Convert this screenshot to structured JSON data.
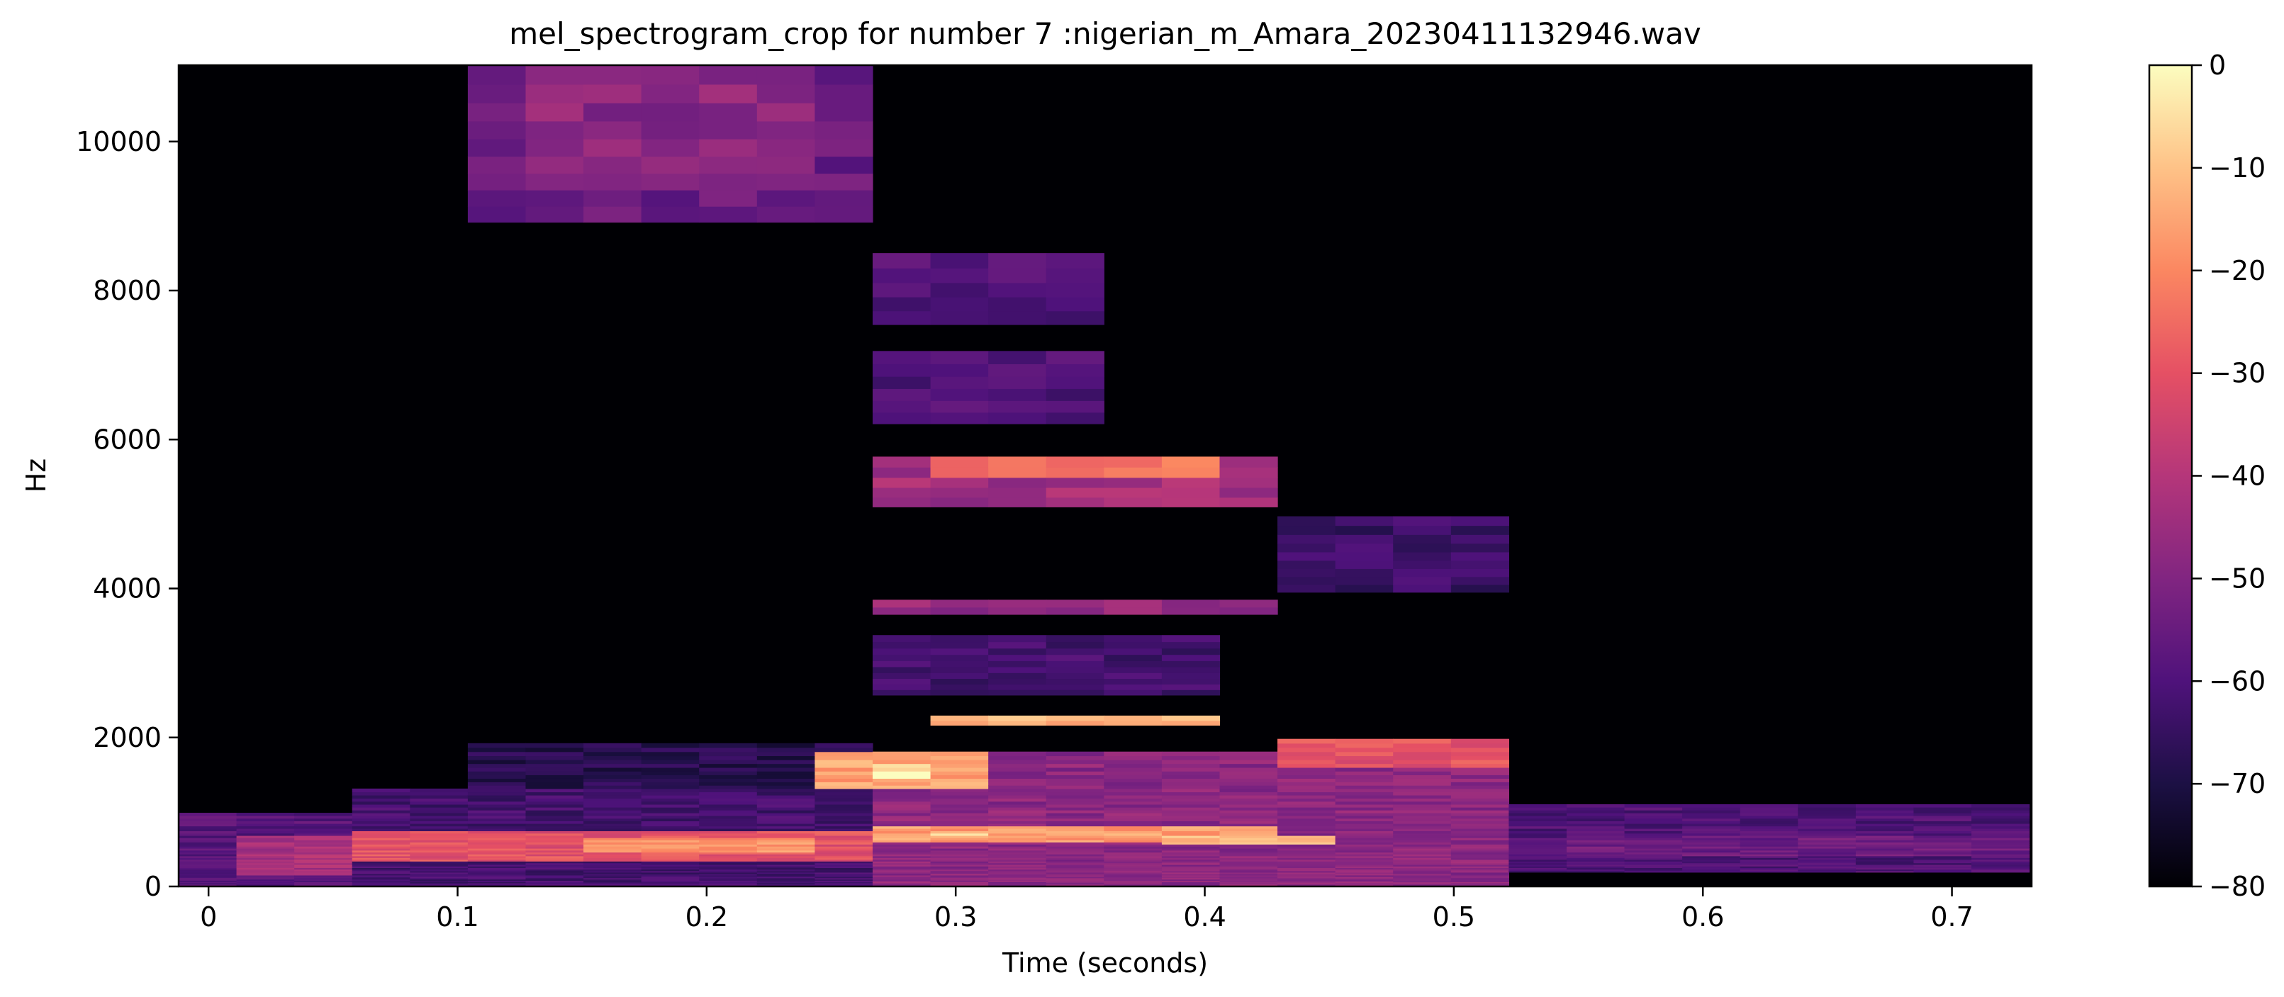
{
  "chart_data": {
    "type": "heatmap",
    "title": "mel_spectrogram_crop for number 7 :nigerian_m_Amara_20230411132946.wav",
    "xlabel": "Time (seconds)",
    "ylabel": "Hz",
    "xlim": [
      -0.012,
      0.732
    ],
    "ylim": [
      0,
      11025
    ],
    "x_ticks": [
      0,
      0.1,
      0.2,
      0.3,
      0.4,
      0.5,
      0.6,
      0.7
    ],
    "x_tick_labels": [
      "0",
      "0.1",
      "0.2",
      "0.3",
      "0.4",
      "0.5",
      "0.6",
      "0.7"
    ],
    "y_ticks": [
      0,
      2000,
      4000,
      6000,
      8000,
      10000
    ],
    "y_tick_labels": [
      "0",
      "2000",
      "4000",
      "6000",
      "8000",
      "10000"
    ],
    "colorbar": {
      "range": [
        -80,
        0
      ],
      "ticks": [
        0,
        -10,
        -20,
        -30,
        -40,
        -50,
        -60,
        -70,
        -80
      ],
      "tick_labels": [
        "0",
        "−10",
        "−20",
        "−30",
        "−40",
        "−50",
        "−60",
        "−70",
        "−80"
      ],
      "colormap": "magma"
    },
    "frame_duration": 0.02322,
    "frame_start": -0.012,
    "frame_count": 32,
    "mel_bands": 128,
    "regions": [
      {
        "t0": -0.012,
        "t1": 0.056,
        "f0": 0,
        "f1": 1000,
        "db": -58
      },
      {
        "t0": 0.012,
        "t1": 0.056,
        "f0": 150,
        "f1": 700,
        "db": -42
      },
      {
        "t0": 0.056,
        "t1": 0.268,
        "f0": 0,
        "f1": 1300,
        "db": -62
      },
      {
        "t0": 0.056,
        "t1": 0.268,
        "f0": 350,
        "f1": 750,
        "db": -30
      },
      {
        "t0": 0.15,
        "t1": 0.245,
        "f0": 450,
        "f1": 650,
        "db": -18
      },
      {
        "t0": 0.1,
        "t1": 0.268,
        "f0": 1300,
        "f1": 1900,
        "db": -68
      },
      {
        "t0": 0.105,
        "t1": 0.268,
        "f0": 9000,
        "f1": 11000,
        "db": -55
      },
      {
        "t0": 0.13,
        "t1": 0.245,
        "f0": 9300,
        "f1": 10900,
        "db": -48
      },
      {
        "t0": 0.268,
        "t1": 0.52,
        "f0": 0,
        "f1": 1800,
        "db": -48
      },
      {
        "t0": 0.268,
        "t1": 0.43,
        "f0": 600,
        "f1": 800,
        "db": -16
      },
      {
        "t0": 0.29,
        "t1": 0.31,
        "f0": 650,
        "f1": 760,
        "db": -8
      },
      {
        "t0": 0.38,
        "t1": 0.46,
        "f0": 560,
        "f1": 700,
        "db": -10
      },
      {
        "t0": 0.245,
        "t1": 0.32,
        "f0": 1300,
        "f1": 1800,
        "db": -15
      },
      {
        "t0": 0.268,
        "t1": 0.29,
        "f0": 1450,
        "f1": 1650,
        "db": -3
      },
      {
        "t0": 0.29,
        "t1": 0.4,
        "f0": 2150,
        "f1": 2300,
        "db": -12
      },
      {
        "t0": 0.268,
        "t1": 0.4,
        "f0": 2600,
        "f1": 3400,
        "db": -62
      },
      {
        "t0": 0.268,
        "t1": 0.42,
        "f0": 3650,
        "f1": 3800,
        "db": -46
      },
      {
        "t0": 0.268,
        "t1": 0.43,
        "f0": 5100,
        "f1": 5800,
        "db": -44
      },
      {
        "t0": 0.29,
        "t1": 0.4,
        "f0": 5550,
        "f1": 5700,
        "db": -22
      },
      {
        "t0": 0.268,
        "t1": 0.36,
        "f0": 6200,
        "f1": 7200,
        "db": -60
      },
      {
        "t0": 0.268,
        "t1": 0.36,
        "f0": 7600,
        "f1": 8500,
        "db": -60
      },
      {
        "t0": 0.42,
        "t1": 0.52,
        "f0": 1600,
        "f1": 2000,
        "db": -30
      },
      {
        "t0": 0.43,
        "t1": 0.52,
        "f0": 3900,
        "f1": 5000,
        "db": -64
      },
      {
        "t0": 0.52,
        "t1": 0.73,
        "f0": 200,
        "f1": 1100,
        "db": -60
      },
      {
        "t0": 0.55,
        "t1": 0.73,
        "f0": 400,
        "f1": 700,
        "db": -54
      }
    ]
  }
}
